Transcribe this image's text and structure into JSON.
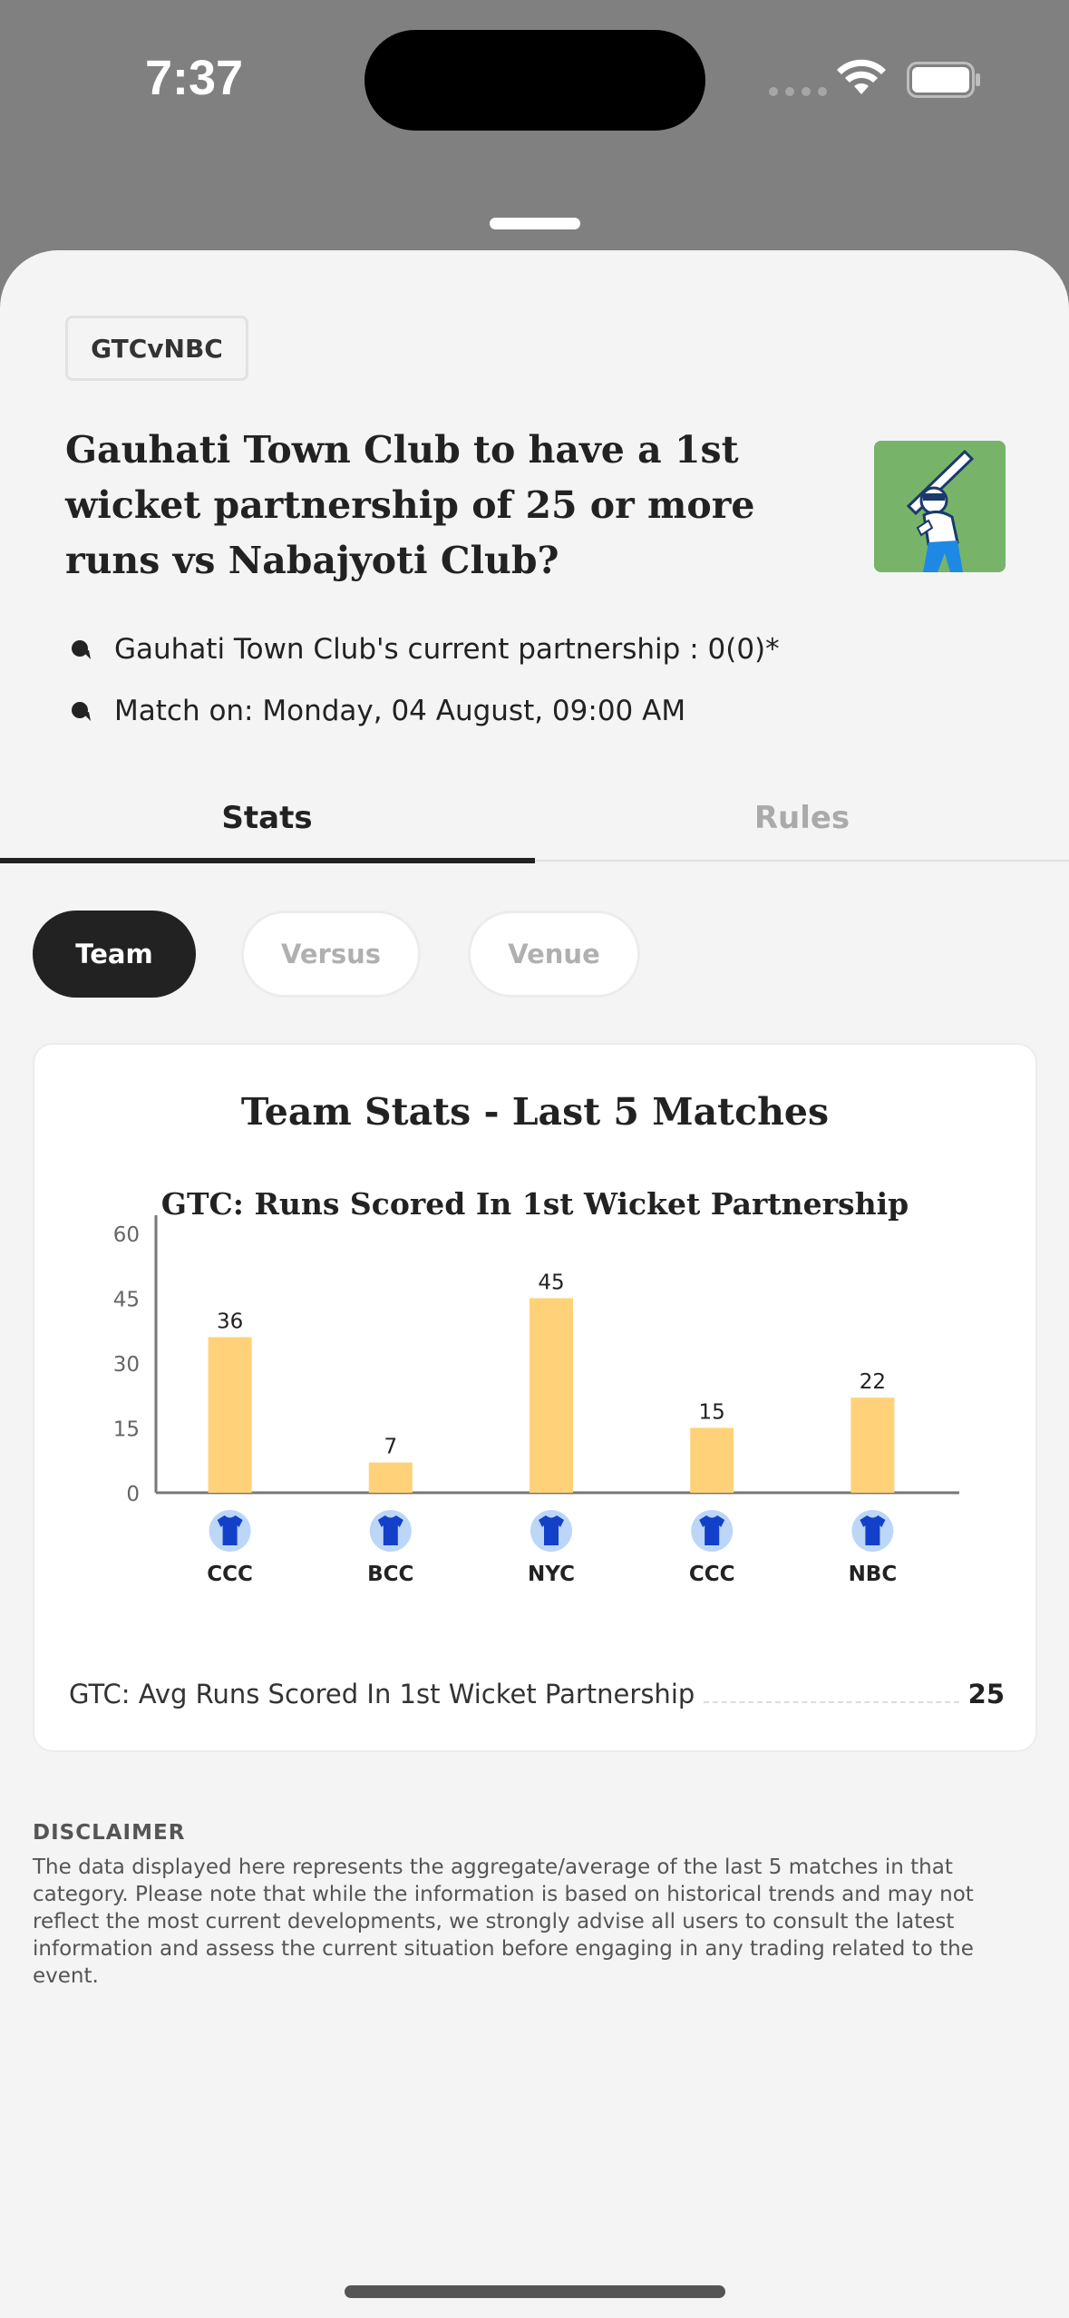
{
  "status_bar": {
    "time": "7:37"
  },
  "market": {
    "chip": "GTCvNBC",
    "question": "Gauhati Town Club to have a 1st wicket partnership of 25 or more runs vs Nabajyoti Club?",
    "info": [
      "Gauhati Town Club's current partnership : 0(0)*",
      "Match on: Monday, 04 August, 09:00 AM"
    ]
  },
  "tabs": [
    {
      "label": "Stats",
      "active": true
    },
    {
      "label": "Rules",
      "active": false
    }
  ],
  "filters": [
    {
      "label": "Team",
      "active": true
    },
    {
      "label": "Versus",
      "active": false
    },
    {
      "label": "Venue",
      "active": false
    }
  ],
  "card": {
    "title": "Team Stats - Last 5 Matches",
    "avg_label": "GTC: Avg Runs Scored In 1st Wicket Partnership",
    "avg_value": "25"
  },
  "chart_data": {
    "type": "bar",
    "title": "GTC: Runs Scored In 1st Wicket Partnership",
    "categories": [
      "CCC",
      "BCC",
      "NYC",
      "CCC",
      "NBC"
    ],
    "values": [
      36,
      7,
      45,
      15,
      22
    ],
    "yticks": [
      0,
      15,
      30,
      45,
      60
    ],
    "ylim": [
      0,
      60
    ],
    "bar_color": "#ffd27a",
    "xlabel": "",
    "ylabel": "",
    "grid": false
  },
  "disclaimer": {
    "title": "DISCLAIMER",
    "text": "The data displayed here represents the aggregate/average of the last 5 matches in that category. Please note that while the information is based on historical trends and may not reflect the most current developments, we strongly advise all users to consult the latest information and assess the current situation before engaging in any trading related to the event."
  },
  "icons": {
    "bullet": "bullet-icon",
    "team_jersey": "jersey-icon",
    "question_image": "cricket-batsman-icon"
  }
}
